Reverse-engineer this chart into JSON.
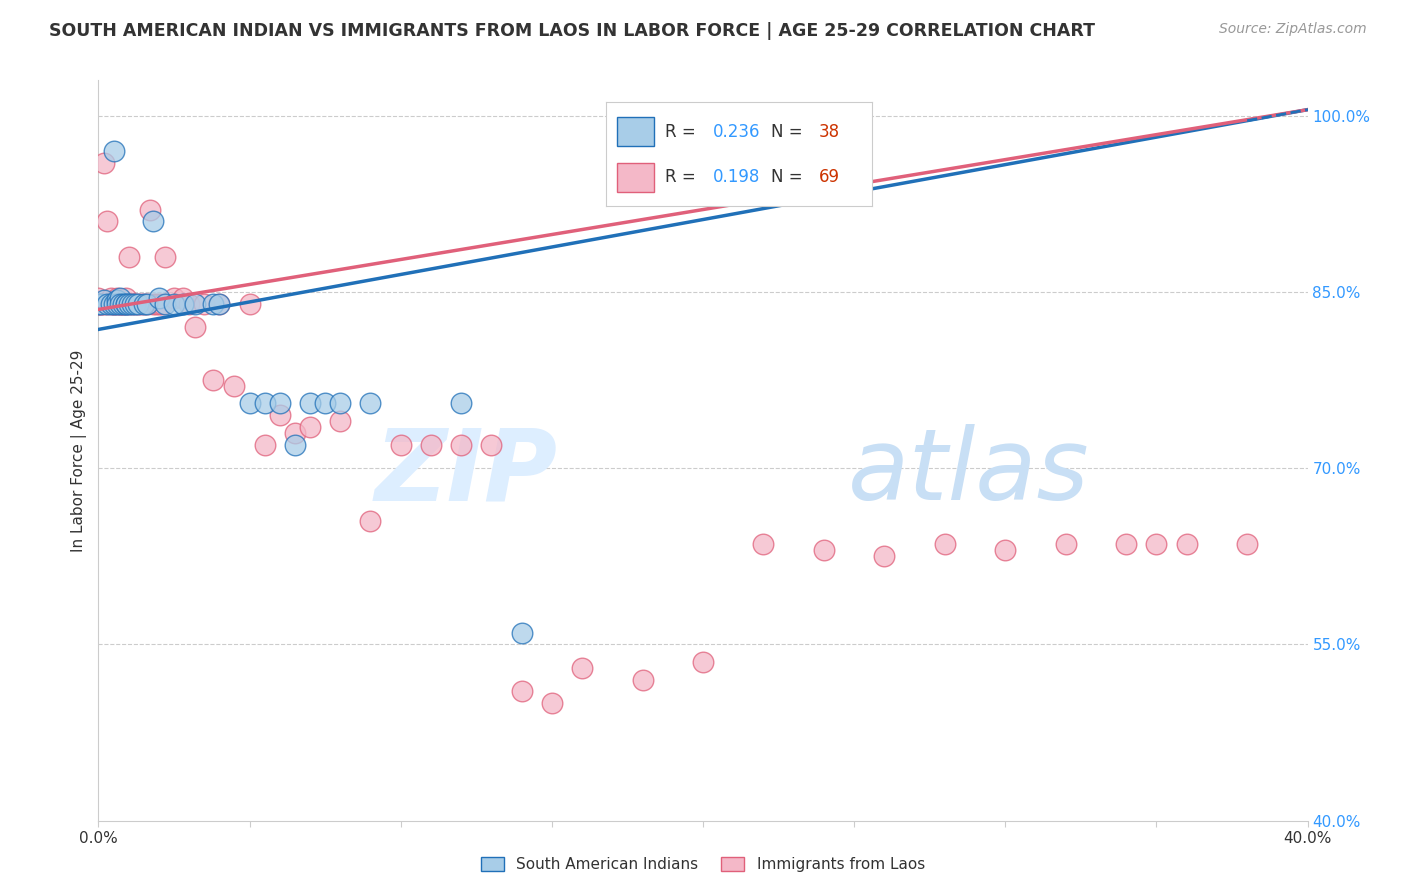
{
  "title": "SOUTH AMERICAN INDIAN VS IMMIGRANTS FROM LAOS IN LABOR FORCE | AGE 25-29 CORRELATION CHART",
  "source": "Source: ZipAtlas.com",
  "ylabel": "In Labor Force | Age 25-29",
  "xlim": [
    0.0,
    0.4
  ],
  "ylim": [
    0.4,
    1.03
  ],
  "R_blue": 0.236,
  "N_blue": 38,
  "R_pink": 0.198,
  "N_pink": 69,
  "blue_color": "#a8cde8",
  "pink_color": "#f4b8c8",
  "line_blue": "#2070b8",
  "line_pink": "#e0607a",
  "text_color": "#333333",
  "axis_color": "#3399ff",
  "legend_label_blue": "South American Indians",
  "legend_label_pink": "Immigrants from Laos",
  "watermark_zip": "ZIP",
  "watermark_atlas": "atlas",
  "grid_color": "#cccccc",
  "blue_scatter_x": [
    0.0,
    0.001,
    0.002,
    0.003,
    0.004,
    0.005,
    0.005,
    0.006,
    0.006,
    0.007,
    0.007,
    0.008,
    0.009,
    0.009,
    0.01,
    0.011,
    0.012,
    0.013,
    0.015,
    0.016,
    0.018,
    0.02,
    0.022,
    0.025,
    0.028,
    0.032,
    0.038,
    0.04,
    0.05,
    0.055,
    0.06,
    0.065,
    0.07,
    0.075,
    0.08,
    0.09,
    0.12,
    0.14
  ],
  "blue_scatter_y": [
    0.84,
    0.84,
    0.843,
    0.84,
    0.84,
    0.97,
    0.84,
    0.843,
    0.84,
    0.845,
    0.84,
    0.84,
    0.84,
    0.84,
    0.84,
    0.84,
    0.84,
    0.84,
    0.84,
    0.84,
    0.91,
    0.845,
    0.84,
    0.84,
    0.84,
    0.84,
    0.84,
    0.84,
    0.755,
    0.755,
    0.755,
    0.72,
    0.755,
    0.755,
    0.755,
    0.755,
    0.755,
    0.56
  ],
  "pink_scatter_x": [
    0.0,
    0.0,
    0.0,
    0.001,
    0.001,
    0.002,
    0.002,
    0.003,
    0.003,
    0.004,
    0.004,
    0.005,
    0.005,
    0.006,
    0.006,
    0.007,
    0.007,
    0.008,
    0.008,
    0.009,
    0.009,
    0.01,
    0.01,
    0.011,
    0.012,
    0.013,
    0.014,
    0.015,
    0.016,
    0.017,
    0.018,
    0.019,
    0.02,
    0.021,
    0.022,
    0.025,
    0.028,
    0.03,
    0.032,
    0.035,
    0.038,
    0.04,
    0.045,
    0.05,
    0.055,
    0.06,
    0.065,
    0.07,
    0.08,
    0.09,
    0.1,
    0.11,
    0.12,
    0.13,
    0.14,
    0.15,
    0.16,
    0.18,
    0.2,
    0.22,
    0.24,
    0.26,
    0.28,
    0.3,
    0.32,
    0.34,
    0.35,
    0.36,
    0.38
  ],
  "pink_scatter_y": [
    0.84,
    0.845,
    0.84,
    0.84,
    0.84,
    0.96,
    0.84,
    0.91,
    0.84,
    0.845,
    0.84,
    0.84,
    0.84,
    0.845,
    0.84,
    0.84,
    0.84,
    0.84,
    0.84,
    0.84,
    0.845,
    0.88,
    0.84,
    0.84,
    0.84,
    0.84,
    0.84,
    0.84,
    0.84,
    0.92,
    0.84,
    0.84,
    0.84,
    0.84,
    0.88,
    0.845,
    0.845,
    0.84,
    0.82,
    0.84,
    0.775,
    0.84,
    0.77,
    0.84,
    0.72,
    0.745,
    0.73,
    0.735,
    0.74,
    0.655,
    0.72,
    0.72,
    0.72,
    0.72,
    0.51,
    0.5,
    0.53,
    0.52,
    0.535,
    0.635,
    0.63,
    0.625,
    0.635,
    0.63,
    0.635,
    0.635,
    0.635,
    0.635,
    0.635
  ],
  "blue_line_x0": 0.0,
  "blue_line_y0": 0.818,
  "blue_line_x1": 0.4,
  "blue_line_y1": 1.005,
  "pink_line_x0": 0.0,
  "pink_line_y0": 0.835,
  "pink_line_x1": 0.4,
  "pink_line_y1": 1.005
}
